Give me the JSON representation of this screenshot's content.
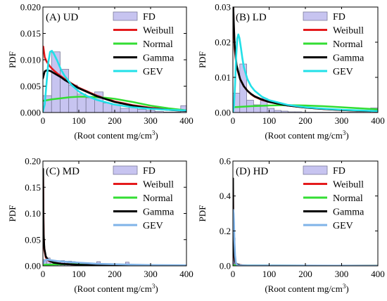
{
  "chart_data": [
    {
      "type": "bar",
      "panel_label": "(A) UD",
      "xlabel": "(Root content mg/cm",
      "xlabel_sup": "3",
      "xlabel_close": ")",
      "ylabel": "PDF",
      "xlim": [
        0,
        400
      ],
      "ylim": [
        0,
        0.02
      ],
      "xticks": [
        0,
        100,
        200,
        300,
        400
      ],
      "yticks": [
        0,
        0.005,
        0.01,
        0.015,
        0.02
      ],
      "yticklabels": [
        "0.000",
        "0.005",
        "0.010",
        "0.015",
        "0.020"
      ],
      "legend": [
        "FD",
        "Weibull",
        "Normal",
        "Gamma",
        "GEV"
      ],
      "bins": [
        {
          "x0": 0,
          "x1": 24,
          "y": 0.0032
        },
        {
          "x0": 24,
          "x1": 48,
          "y": 0.0115
        },
        {
          "x0": 48,
          "x1": 72,
          "y": 0.0082
        },
        {
          "x0": 72,
          "x1": 96,
          "y": 0.0052
        },
        {
          "x0": 96,
          "x1": 120,
          "y": 0.0035
        },
        {
          "x0": 120,
          "x1": 144,
          "y": 0.0028
        },
        {
          "x0": 144,
          "x1": 168,
          "y": 0.0039
        },
        {
          "x0": 168,
          "x1": 192,
          "y": 0.0018
        },
        {
          "x0": 192,
          "x1": 216,
          "y": 0.0015
        },
        {
          "x0": 216,
          "x1": 240,
          "y": 0.0008
        },
        {
          "x0": 240,
          "x1": 264,
          "y": 0.0012
        },
        {
          "x0": 264,
          "x1": 288,
          "y": 0.0006
        },
        {
          "x0": 288,
          "x1": 312,
          "y": 0.0004
        },
        {
          "x0": 312,
          "x1": 336,
          "y": 0.0002
        },
        {
          "x0": 336,
          "x1": 360,
          "y": 0.0001
        },
        {
          "x0": 360,
          "x1": 384,
          "y": 0.0001
        },
        {
          "x0": 384,
          "x1": 400,
          "y": 0.0013
        }
      ],
      "series": [
        {
          "name": "Weibull",
          "color": "#e41a1c",
          "x": [
            1,
            5,
            10,
            20,
            30,
            40,
            50,
            60,
            80,
            100,
            120,
            150,
            200,
            250,
            300,
            350,
            400
          ],
          "y": [
            0.0125,
            0.0105,
            0.0097,
            0.0087,
            0.008,
            0.0074,
            0.0069,
            0.0064,
            0.0055,
            0.0047,
            0.0041,
            0.0032,
            0.0021,
            0.0014,
            0.0009,
            0.0006,
            0.0004
          ]
        },
        {
          "name": "Normal",
          "color": "#33dd33",
          "x": [
            0,
            25,
            50,
            75,
            100,
            125,
            150,
            175,
            200,
            250,
            300,
            350,
            400
          ],
          "y": [
            0.0022,
            0.0025,
            0.0027,
            0.0029,
            0.003,
            0.003,
            0.0029,
            0.0028,
            0.0026,
            0.002,
            0.0013,
            0.0008,
            0.0004
          ]
        },
        {
          "name": "Gamma",
          "color": "#000000",
          "x": [
            0,
            5,
            10,
            20,
            30,
            40,
            50,
            60,
            80,
            100,
            120,
            150,
            200,
            250,
            300,
            350,
            400
          ],
          "y": [
            0.0065,
            0.0078,
            0.008,
            0.0079,
            0.0075,
            0.0071,
            0.0067,
            0.0062,
            0.0054,
            0.0046,
            0.004,
            0.0031,
            0.002,
            0.0013,
            0.0008,
            0.0005,
            0.0003
          ]
        },
        {
          "name": "GEV",
          "color": "#22e0e8",
          "x": [
            0,
            5,
            10,
            15,
            20,
            25,
            30,
            40,
            50,
            60,
            80,
            100,
            120,
            150,
            200,
            250,
            300,
            350,
            400
          ],
          "y": [
            0.0002,
            0.0015,
            0.0055,
            0.0095,
            0.0115,
            0.0117,
            0.0112,
            0.0098,
            0.0082,
            0.007,
            0.0052,
            0.004,
            0.0032,
            0.0024,
            0.0015,
            0.001,
            0.0007,
            0.0005,
            0.0004
          ]
        }
      ]
    },
    {
      "type": "bar",
      "panel_label": "(B) LD",
      "xlabel": "(Root content mg/cm",
      "xlabel_sup": "3",
      "xlabel_close": ")",
      "ylabel": "PDF",
      "xlim": [
        0,
        400
      ],
      "ylim": [
        0,
        0.03
      ],
      "xticks": [
        0,
        100,
        200,
        300,
        400
      ],
      "yticks": [
        0,
        0.01,
        0.02,
        0.03
      ],
      "yticklabels": [
        "0.00",
        "0.01",
        "0.02",
        "0.03"
      ],
      "legend": [
        "FD",
        "Weibull",
        "Normal",
        "Gamma",
        "GEV"
      ],
      "bins": [
        {
          "x0": 0,
          "x1": 19,
          "y": 0.0055
        },
        {
          "x0": 19,
          "x1": 38,
          "y": 0.0138
        },
        {
          "x0": 38,
          "x1": 57,
          "y": 0.0035
        },
        {
          "x0": 57,
          "x1": 76,
          "y": 0.0022
        },
        {
          "x0": 76,
          "x1": 95,
          "y": 0.004
        },
        {
          "x0": 95,
          "x1": 114,
          "y": 0.0012
        },
        {
          "x0": 114,
          "x1": 133,
          "y": 0.0006
        },
        {
          "x0": 133,
          "x1": 152,
          "y": 0.0004
        },
        {
          "x0": 152,
          "x1": 171,
          "y": 0.0002
        },
        {
          "x0": 171,
          "x1": 190,
          "y": 0.0002
        },
        {
          "x0": 190,
          "x1": 209,
          "y": 0.0001
        },
        {
          "x0": 209,
          "x1": 228,
          "y": 0.0001
        },
        {
          "x0": 228,
          "x1": 247,
          "y": 0.0001
        },
        {
          "x0": 247,
          "x1": 266,
          "y": 0.0001
        },
        {
          "x0": 266,
          "x1": 285,
          "y": 0.0001
        },
        {
          "x0": 285,
          "x1": 304,
          "y": 0.0001
        },
        {
          "x0": 304,
          "x1": 323,
          "y": 0.0001
        },
        {
          "x0": 323,
          "x1": 342,
          "y": 0.0001
        },
        {
          "x0": 342,
          "x1": 361,
          "y": 0.0001
        },
        {
          "x0": 361,
          "x1": 380,
          "y": 0.0001
        },
        {
          "x0": 380,
          "x1": 400,
          "y": 0.0013
        }
      ],
      "series": [
        {
          "name": "Weibull",
          "color": "#e41a1c",
          "x": [
            1,
            3,
            5,
            10,
            20,
            30,
            40,
            50,
            60,
            80,
            100,
            150,
            200,
            250,
            300,
            350,
            400
          ],
          "y": [
            0.03,
            0.022,
            0.018,
            0.013,
            0.0095,
            0.0075,
            0.0062,
            0.0052,
            0.0045,
            0.0036,
            0.003,
            0.002,
            0.0014,
            0.001,
            0.0007,
            0.0005,
            0.0004
          ]
        },
        {
          "name": "Normal",
          "color": "#33dd33",
          "x": [
            0,
            50,
            100,
            150,
            200,
            250,
            300,
            350,
            400
          ],
          "y": [
            0.0015,
            0.0018,
            0.002,
            0.0021,
            0.002,
            0.0018,
            0.0015,
            0.0012,
            0.0009
          ]
        },
        {
          "name": "Gamma",
          "color": "#000000",
          "x": [
            1,
            3,
            5,
            10,
            20,
            30,
            40,
            50,
            60,
            80,
            100,
            150,
            200,
            250,
            300,
            350,
            400
          ],
          "y": [
            0.03,
            0.024,
            0.019,
            0.0135,
            0.0095,
            0.0075,
            0.0062,
            0.0053,
            0.0046,
            0.0037,
            0.003,
            0.002,
            0.0014,
            0.001,
            0.0007,
            0.0005,
            0.0004
          ]
        },
        {
          "name": "GEV",
          "color": "#22e0e8",
          "x": [
            0,
            3,
            6,
            9,
            12,
            15,
            18,
            22,
            26,
            30,
            40,
            50,
            60,
            80,
            100,
            150,
            200,
            250,
            300,
            350,
            400
          ],
          "y": [
            0.0,
            0.002,
            0.008,
            0.016,
            0.021,
            0.0222,
            0.0212,
            0.0185,
            0.0155,
            0.013,
            0.0095,
            0.0075,
            0.0062,
            0.0045,
            0.0035,
            0.0022,
            0.0015,
            0.0011,
            0.0008,
            0.0006,
            0.0004
          ]
        }
      ]
    },
    {
      "type": "bar",
      "panel_label": "(C) MD",
      "xlabel": "(Root content mg/cm",
      "xlabel_sup": "3",
      "xlabel_close": ")",
      "ylabel": "PDF",
      "xlim": [
        0,
        400
      ],
      "ylim": [
        0,
        0.2
      ],
      "xticks": [
        0,
        100,
        200,
        300,
        400
      ],
      "yticks": [
        0,
        0.05,
        0.1,
        0.15,
        0.2
      ],
      "yticklabels": [
        "0.00",
        "0.05",
        "0.10",
        "0.15",
        "0.20"
      ],
      "legend": [
        "FD",
        "Weibull",
        "Normal",
        "Gamma",
        "GEV"
      ],
      "bins": [
        {
          "x0": 0,
          "x1": 10,
          "y": 0.012
        },
        {
          "x0": 10,
          "x1": 20,
          "y": 0.015
        },
        {
          "x0": 20,
          "x1": 30,
          "y": 0.01
        },
        {
          "x0": 30,
          "x1": 40,
          "y": 0.008
        },
        {
          "x0": 40,
          "x1": 50,
          "y": 0.006
        },
        {
          "x0": 50,
          "x1": 60,
          "y": 0.01
        },
        {
          "x0": 60,
          "x1": 70,
          "y": 0.007
        },
        {
          "x0": 70,
          "x1": 80,
          "y": 0.009
        },
        {
          "x0": 80,
          "x1": 90,
          "y": 0.008
        },
        {
          "x0": 90,
          "x1": 100,
          "y": 0.005
        },
        {
          "x0": 100,
          "x1": 110,
          "y": 0.004
        },
        {
          "x0": 110,
          "x1": 120,
          "y": 0.003
        },
        {
          "x0": 120,
          "x1": 130,
          "y": 0.003
        },
        {
          "x0": 130,
          "x1": 140,
          "y": 0.002
        },
        {
          "x0": 140,
          "x1": 150,
          "y": 0.002
        },
        {
          "x0": 150,
          "x1": 160,
          "y": 0.008
        },
        {
          "x0": 160,
          "x1": 170,
          "y": 0.002
        },
        {
          "x0": 170,
          "x1": 180,
          "y": 0.001
        },
        {
          "x0": 180,
          "x1": 190,
          "y": 0.001
        },
        {
          "x0": 190,
          "x1": 200,
          "y": 0.001
        },
        {
          "x0": 230,
          "x1": 240,
          "y": 0.007
        }
      ],
      "series": [
        {
          "name": "Weibull",
          "color": "#e41a1c",
          "x": [
            0.5,
            2,
            4,
            8,
            15,
            30,
            50,
            100,
            200,
            300,
            400
          ],
          "y": [
            0.17,
            0.06,
            0.03,
            0.016,
            0.01,
            0.006,
            0.004,
            0.002,
            0.0008,
            0.0004,
            0.0002
          ]
        },
        {
          "name": "Normal",
          "color": "#33dd33",
          "x": [
            0,
            50,
            100,
            150,
            200,
            250,
            300,
            400
          ],
          "y": [
            0.002,
            0.003,
            0.0035,
            0.003,
            0.002,
            0.0012,
            0.0006,
            0.0002
          ]
        },
        {
          "name": "Gamma",
          "color": "#000000",
          "x": [
            0.5,
            1,
            2,
            4,
            8,
            15,
            30,
            50,
            100,
            200,
            300,
            400
          ],
          "y": [
            0.185,
            0.11,
            0.06,
            0.033,
            0.018,
            0.011,
            0.006,
            0.004,
            0.002,
            0.0008,
            0.0004,
            0.0002
          ]
        },
        {
          "name": "GEV",
          "color": "#7fb3e8",
          "x": [
            0,
            5,
            10,
            20,
            40,
            60,
            100,
            150,
            200,
            300,
            400
          ],
          "y": [
            0.004,
            0.01,
            0.012,
            0.011,
            0.009,
            0.008,
            0.006,
            0.004,
            0.003,
            0.0015,
            0.001
          ]
        }
      ]
    },
    {
      "type": "bar",
      "panel_label": "(D) HD",
      "xlabel": "(Root content mg/cm",
      "xlabel_sup": "3",
      "xlabel_close": ")",
      "ylabel": "PDF",
      "xlim": [
        0,
        400
      ],
      "ylim": [
        0,
        0.6
      ],
      "xticks": [
        0,
        100,
        200,
        300,
        400
      ],
      "yticks": [
        0,
        0.2,
        0.4,
        0.6
      ],
      "yticklabels": [
        "0.0",
        "0.2",
        "0.4",
        "0.6"
      ],
      "legend": [
        "FD",
        "Weibull",
        "Normal",
        "Gamma",
        "GEV"
      ],
      "bins": [
        {
          "x0": 0,
          "x1": 2,
          "y": 0.3
        },
        {
          "x0": 2,
          "x1": 4,
          "y": 0.05
        },
        {
          "x0": 4,
          "x1": 6,
          "y": 0.16
        },
        {
          "x0": 6,
          "x1": 8,
          "y": 0.02
        }
      ],
      "series": [
        {
          "name": "Weibull",
          "color": "#e41a1c",
          "x": [
            0.3,
            1,
            2,
            3,
            5,
            8,
            12,
            20,
            40,
            400
          ],
          "y": [
            0.45,
            0.2,
            0.1,
            0.06,
            0.03,
            0.015,
            0.008,
            0.004,
            0.001,
            0.0
          ]
        },
        {
          "name": "Normal",
          "color": "#33dd33",
          "x": [
            0,
            100,
            200,
            300,
            400
          ],
          "y": [
            0.003,
            0.002,
            0.001,
            0.0005,
            0.0002
          ]
        },
        {
          "name": "Gamma",
          "color": "#000000",
          "x": [
            0.3,
            0.8,
            1.5,
            2.5,
            4,
            6,
            10,
            20,
            40,
            400
          ],
          "y": [
            0.5,
            0.3,
            0.16,
            0.09,
            0.05,
            0.025,
            0.01,
            0.004,
            0.001,
            0.0
          ]
        },
        {
          "name": "GEV",
          "color": "#7fb3e8",
          "x": [
            0,
            1,
            2,
            3,
            4,
            6,
            8,
            10,
            15,
            400
          ],
          "y": [
            0.32,
            0.32,
            0.3,
            0.25,
            0.15,
            0.06,
            0.02,
            0.008,
            0.003,
            0.0
          ]
        }
      ]
    }
  ]
}
